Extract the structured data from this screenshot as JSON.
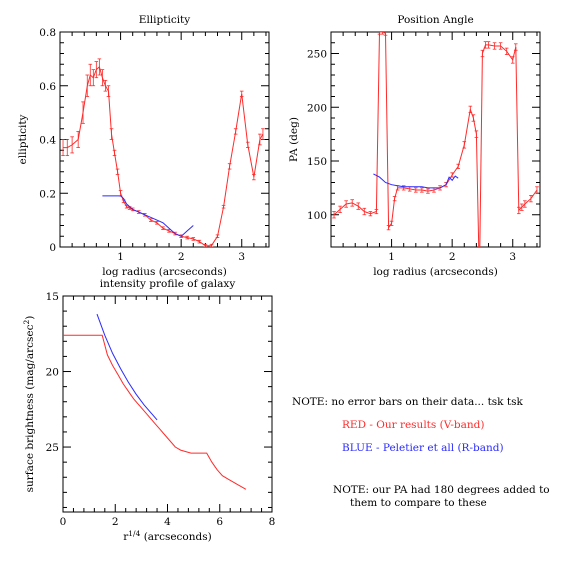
{
  "chart_data": [
    {
      "id": "ellipticity",
      "type": "line",
      "title": "Ellipticity",
      "xlabel": "log radius (arcseconds)",
      "ylabel": "ellipticity",
      "xlim": [
        0,
        3.45
      ],
      "ylim": [
        0,
        0.8
      ],
      "xticks": [
        1,
        2,
        3
      ],
      "yticks": [
        0,
        0.2,
        0.4,
        0.6,
        0.8
      ],
      "ytick_labels": [
        "0",
        "0.2",
        "0.4",
        "0.6",
        "0.8"
      ],
      "series": [
        {
          "color": "#ff2a2a",
          "errorbars": true,
          "x": [
            0.05,
            0.12,
            0.2,
            0.3,
            0.38,
            0.45,
            0.5,
            0.55,
            0.6,
            0.65,
            0.7,
            0.75,
            0.8,
            0.85,
            0.9,
            0.95,
            1.0,
            1.05,
            1.1,
            1.15,
            1.2,
            1.3,
            1.4,
            1.5,
            1.6,
            1.7,
            1.8,
            1.9,
            2.0,
            2.1,
            2.2,
            2.3,
            2.4,
            2.5,
            2.6,
            2.7,
            2.8,
            2.9,
            3.0,
            3.1,
            3.2,
            3.3,
            3.35
          ],
          "y": [
            0.37,
            0.37,
            0.38,
            0.4,
            0.5,
            0.6,
            0.64,
            0.63,
            0.66,
            0.67,
            0.63,
            0.6,
            0.58,
            0.42,
            0.35,
            0.28,
            0.2,
            0.17,
            0.15,
            0.145,
            0.14,
            0.13,
            0.12,
            0.1,
            0.09,
            0.07,
            0.06,
            0.05,
            0.04,
            0.035,
            0.03,
            0.02,
            0.005,
            0.005,
            0.04,
            0.15,
            0.3,
            0.43,
            0.57,
            0.38,
            0.26,
            0.4,
            0.42
          ],
          "err": [
            0.03,
            0.03,
            0.03,
            0.03,
            0.04,
            0.04,
            0.04,
            0.03,
            0.03,
            0.03,
            0.03,
            0.02,
            0.02,
            0.02,
            0.01,
            0.01,
            0.01,
            0.005,
            0.005,
            0.005,
            0.005,
            0.005,
            0.005,
            0.005,
            0.005,
            0.005,
            0.005,
            0.005,
            0.005,
            0.005,
            0.005,
            0.005,
            0.005,
            0.005,
            0.005,
            0.005,
            0.01,
            0.01,
            0.01,
            0.01,
            0.01,
            0.02,
            0.02
          ]
        },
        {
          "color": "#2a2aff",
          "x": [
            0.7,
            0.8,
            0.9,
            1.0,
            1.05,
            1.1,
            1.2,
            1.3,
            1.4,
            1.5,
            1.6,
            1.7,
            1.8,
            1.9,
            2.0,
            2.05,
            2.1,
            2.15,
            2.2
          ],
          "y": [
            0.19,
            0.19,
            0.19,
            0.19,
            0.18,
            0.16,
            0.14,
            0.13,
            0.12,
            0.11,
            0.1,
            0.09,
            0.07,
            0.05,
            0.04,
            0.05,
            0.06,
            0.07,
            0.08
          ]
        }
      ]
    },
    {
      "id": "position-angle",
      "type": "line",
      "title": "Position Angle",
      "xlabel": "log radius (arcseconds)",
      "ylabel": "PA (deg)",
      "xlim": [
        0,
        3.45
      ],
      "ylim": [
        70,
        270
      ],
      "xticks": [
        1,
        2,
        3
      ],
      "yticks": [
        100,
        150,
        200,
        250
      ],
      "ytick_labels": [
        "100",
        "150",
        "200",
        "250"
      ],
      "series": [
        {
          "color": "#ff2a2a",
          "errorbars": true,
          "x": [
            0.05,
            0.15,
            0.25,
            0.35,
            0.45,
            0.55,
            0.65,
            0.75,
            0.8,
            0.85,
            0.9,
            0.95,
            1.0,
            1.05,
            1.1,
            1.2,
            1.3,
            1.4,
            1.5,
            1.6,
            1.7,
            1.8,
            1.9,
            2.0,
            2.1,
            2.2,
            2.3,
            2.35,
            2.4,
            2.45,
            2.5,
            2.55,
            2.6,
            2.7,
            2.8,
            2.9,
            3.0,
            3.05,
            3.1,
            3.15,
            3.2,
            3.3,
            3.4
          ],
          "y": [
            100,
            105,
            110,
            111,
            108,
            103,
            101,
            103,
            270,
            270,
            269,
            88,
            92,
            115,
            125,
            125,
            124,
            123,
            123,
            122,
            123,
            125,
            128,
            137,
            145,
            165,
            198,
            190,
            175,
            40,
            250,
            258,
            258,
            257,
            257,
            252,
            244,
            256,
            104,
            107,
            110,
            115,
            123
          ],
          "err": [
            3,
            3,
            3,
            3,
            3,
            3,
            2,
            2,
            2,
            2,
            2,
            2,
            2,
            2,
            2,
            2,
            2,
            2,
            2,
            2,
            2,
            2,
            2,
            2,
            2,
            3,
            3,
            3,
            3,
            3,
            3,
            3,
            3,
            3,
            3,
            3,
            3,
            3,
            3,
            3,
            3,
            3,
            3
          ]
        },
        {
          "color": "#2a2aff",
          "x": [
            0.7,
            0.8,
            0.9,
            1.0,
            1.1,
            1.2,
            1.3,
            1.4,
            1.5,
            1.6,
            1.7,
            1.8,
            1.9,
            1.95,
            2.0,
            2.05,
            2.1
          ],
          "y": [
            138,
            135,
            130,
            128,
            127,
            126,
            126,
            126,
            126,
            125,
            125,
            125,
            128,
            135,
            132,
            136,
            134
          ]
        }
      ]
    },
    {
      "id": "intensity-profile",
      "type": "line",
      "title": "intensity profile of galaxy",
      "xlabel": "r",
      "xlabel_sup": "1/4",
      "xlabel_rest": " (arcseconds)",
      "ylabel": "surface brightness (mag/arcsec",
      "ylabel_sup": "2",
      "ylabel_end": ")",
      "xlim": [
        0,
        8
      ],
      "ylim": [
        15,
        29.3
      ],
      "y_inverted": true,
      "xticks": [
        0,
        2,
        4,
        6,
        8
      ],
      "yticks": [
        15,
        20,
        25
      ],
      "ytick_labels": [
        "15",
        "20",
        "25"
      ],
      "series": [
        {
          "color": "#ff2a2a",
          "x": [
            0,
            1.5,
            1.7,
            1.9,
            2.1,
            2.3,
            2.5,
            2.7,
            2.9,
            3.1,
            3.3,
            3.5,
            3.7,
            3.9,
            4.1,
            4.3,
            4.5,
            4.7,
            4.9,
            5.1,
            5.3,
            5.5,
            5.7,
            5.9,
            6.1,
            6.3,
            6.5,
            6.7,
            6.9,
            7.0
          ],
          "y": [
            17.6,
            17.6,
            18.9,
            19.6,
            20.2,
            20.8,
            21.3,
            21.8,
            22.2,
            22.6,
            23.0,
            23.4,
            23.8,
            24.2,
            24.6,
            25.0,
            25.2,
            25.3,
            25.4,
            25.4,
            25.4,
            25.4,
            26.0,
            26.5,
            26.9,
            27.1,
            27.3,
            27.5,
            27.7,
            27.8
          ]
        },
        {
          "color": "#2a2aff",
          "x": [
            1.3,
            1.6,
            1.9,
            2.2,
            2.5,
            2.8,
            3.1,
            3.4,
            3.6
          ],
          "y": [
            16.2,
            17.6,
            18.8,
            19.8,
            20.7,
            21.5,
            22.2,
            22.8,
            23.2
          ]
        }
      ]
    }
  ],
  "notes": {
    "note1": "NOTE: no error bars on their data... tsk tsk",
    "red_line": "RED - Our results (V-band)",
    "blue_line": "BLUE - Peletier et all (R-band)",
    "note2_line1": "NOTE: our PA had 180 degrees added to",
    "note2_line2": "them to compare to these"
  }
}
